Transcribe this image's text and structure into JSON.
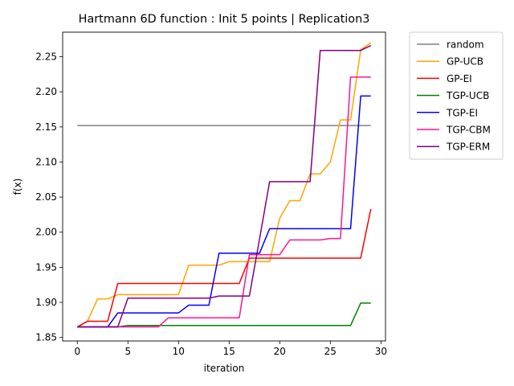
{
  "chart_data": {
    "type": "line",
    "title": "Hartmann 6D function : Init 5 points | Replication3",
    "xlabel": "iteration",
    "ylabel": "f(x)",
    "xlim": [
      -1.45,
      30.45
    ],
    "ylim": [
      1.845,
      2.285
    ],
    "xticks": [
      0,
      5,
      10,
      15,
      20,
      25,
      30
    ],
    "xtick_labels": [
      "0",
      "5",
      "10",
      "15",
      "20",
      "25",
      "30"
    ],
    "yticks": [
      1.85,
      1.9,
      1.95,
      2.0,
      2.05,
      2.1,
      2.15,
      2.2,
      2.25
    ],
    "ytick_labels": [
      "1.85",
      "1.90",
      "1.95",
      "2.00",
      "2.05",
      "2.10",
      "2.15",
      "2.20",
      "2.25"
    ],
    "grid": false,
    "legend_position": "outside-right-top",
    "x": [
      0,
      1,
      2,
      3,
      4,
      5,
      6,
      7,
      8,
      9,
      10,
      11,
      12,
      13,
      14,
      15,
      16,
      17,
      18,
      19,
      20,
      21,
      22,
      23,
      24,
      25,
      26,
      27,
      28,
      29
    ],
    "series": [
      {
        "name": "random",
        "color": "#808080",
        "values": [
          2.152,
          2.152,
          2.152,
          2.152,
          2.152,
          2.152,
          2.152,
          2.152,
          2.152,
          2.152,
          2.152,
          2.152,
          2.152,
          2.152,
          2.152,
          2.152,
          2.152,
          2.152,
          2.152,
          2.152,
          2.152,
          2.152,
          2.152,
          2.152,
          2.152,
          2.152,
          2.152,
          2.152,
          2.152,
          2.152
        ]
      },
      {
        "name": "GP-UCB",
        "color": "#ffa500",
        "values": [
          1.865,
          1.873,
          1.905,
          1.905,
          1.911,
          1.911,
          1.911,
          1.911,
          1.911,
          1.911,
          1.911,
          1.953,
          1.953,
          1.953,
          1.953,
          1.958,
          1.958,
          1.958,
          1.958,
          1.958,
          2.02,
          2.045,
          2.045,
          2.083,
          2.083,
          2.1,
          2.16,
          2.16,
          2.26,
          2.27
        ]
      },
      {
        "name": "GP-EI",
        "color": "#ff0000",
        "values": [
          1.865,
          1.873,
          1.873,
          1.873,
          1.927,
          1.927,
          1.927,
          1.927,
          1.927,
          1.927,
          1.927,
          1.927,
          1.927,
          1.927,
          1.927,
          1.927,
          1.927,
          1.963,
          1.963,
          1.963,
          1.963,
          1.963,
          1.963,
          1.963,
          1.963,
          1.963,
          1.963,
          1.963,
          1.963,
          2.033
        ]
      },
      {
        "name": "TGP-UCB",
        "color": "#008000",
        "values": [
          1.865,
          1.865,
          1.865,
          1.865,
          1.865,
          1.867,
          1.867,
          1.867,
          1.867,
          1.867,
          1.867,
          1.867,
          1.867,
          1.867,
          1.867,
          1.867,
          1.867,
          1.867,
          1.867,
          1.867,
          1.867,
          1.867,
          1.867,
          1.867,
          1.867,
          1.867,
          1.867,
          1.867,
          1.899,
          1.899
        ]
      },
      {
        "name": "TGP-EI",
        "color": "#0000ff",
        "values": [
          1.865,
          1.865,
          1.865,
          1.865,
          1.885,
          1.885,
          1.885,
          1.885,
          1.885,
          1.885,
          1.885,
          1.896,
          1.896,
          1.896,
          1.97,
          1.97,
          1.97,
          1.97,
          1.97,
          2.005,
          2.005,
          2.005,
          2.005,
          2.005,
          2.005,
          2.005,
          2.005,
          2.005,
          2.194,
          2.194
        ]
      },
      {
        "name": "TGP-CBM",
        "color": "#ff1493",
        "values": [
          1.865,
          1.865,
          1.865,
          1.865,
          1.865,
          1.865,
          1.865,
          1.865,
          1.865,
          1.878,
          1.878,
          1.878,
          1.878,
          1.878,
          1.878,
          1.878,
          1.878,
          1.968,
          1.968,
          1.968,
          1.968,
          1.989,
          1.989,
          1.989,
          1.989,
          1.991,
          1.991,
          2.221,
          2.221,
          2.221
        ]
      },
      {
        "name": "TGP-ERM",
        "color": "#800080",
        "values": [
          1.865,
          1.865,
          1.865,
          1.865,
          1.865,
          1.906,
          1.906,
          1.906,
          1.906,
          1.906,
          1.906,
          1.906,
          1.906,
          1.906,
          1.909,
          1.909,
          1.909,
          1.909,
          1.99,
          2.072,
          2.072,
          2.072,
          2.072,
          2.072,
          2.259,
          2.259,
          2.259,
          2.259,
          2.259,
          2.266
        ]
      }
    ]
  }
}
